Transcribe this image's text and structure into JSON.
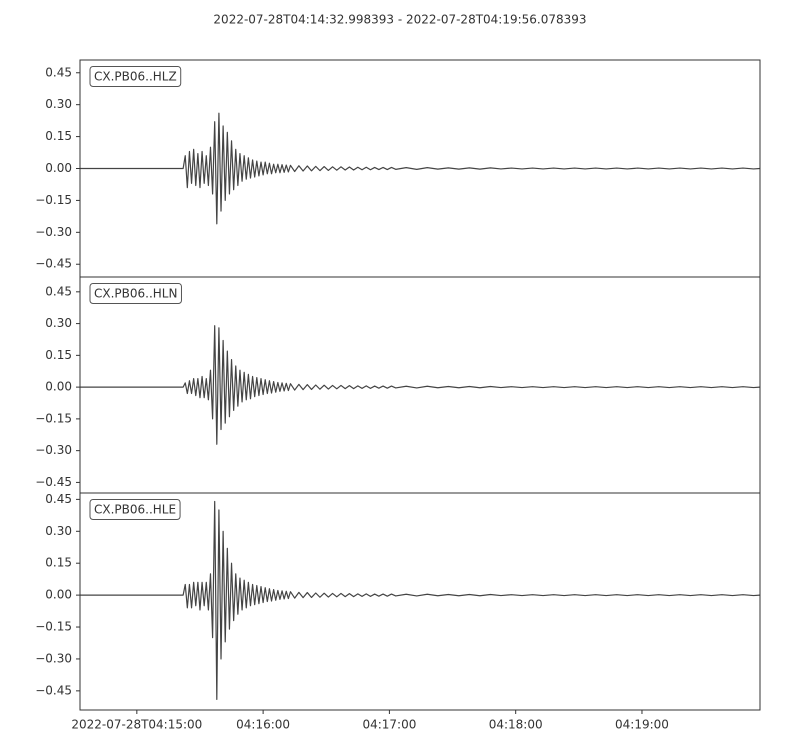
{
  "title": "2022-07-28T04:14:32.998393  -  2022-07-28T04:19:56.078393",
  "chart_data": [
    {
      "type": "line",
      "label": "CX.PB06..HLZ",
      "color": "#444444",
      "xlim": [
        0,
        323.08
      ],
      "ylim": [
        -0.51,
        0.51
      ],
      "yticks": [
        0.45,
        {
          "value": 0.3,
          "label": "0.30"
        },
        {
          "value": 0.15,
          "label": "0.15"
        },
        {
          "value": 0,
          "label": "0.00"
        },
        {
          "value": -0.15,
          "label": "−0.15"
        },
        {
          "value": -0.3,
          "label": "−0.30"
        },
        {
          "value": -0.45,
          "label": "−0.45"
        }
      ],
      "x": [
        0,
        49,
        50,
        51,
        52,
        53,
        54,
        55,
        56,
        57,
        58,
        59,
        60,
        61,
        62,
        63,
        64,
        65,
        66,
        67,
        68,
        69,
        70,
        71,
        72,
        73,
        74,
        75,
        76,
        77,
        78,
        79,
        80,
        81,
        82,
        83,
        84,
        85,
        86,
        87,
        88,
        89,
        90,
        91,
        92,
        93,
        94,
        95,
        96,
        97,
        98,
        99,
        100,
        102,
        104,
        106,
        108,
        110,
        112,
        114,
        116,
        118,
        120,
        122,
        124,
        126,
        128,
        130,
        132,
        134,
        136,
        138,
        140,
        142,
        144,
        146,
        148,
        150,
        155,
        160,
        165,
        170,
        175,
        180,
        185,
        190,
        195,
        200,
        205,
        210,
        215,
        220,
        225,
        230,
        235,
        240,
        245,
        250,
        255,
        260,
        265,
        270,
        275,
        280,
        285,
        290,
        295,
        300,
        305,
        310,
        315,
        320,
        323
      ],
      "values": [
        0,
        0,
        0.06,
        -0.09,
        0.08,
        -0.07,
        0.09,
        -0.08,
        0.07,
        -0.09,
        0.08,
        -0.07,
        0.06,
        -0.08,
        0.1,
        -0.12,
        0.22,
        -0.26,
        0.26,
        -0.2,
        0.2,
        -0.15,
        0.17,
        -0.12,
        0.13,
        -0.1,
        0.09,
        -0.08,
        0.07,
        -0.06,
        0.06,
        -0.05,
        0.05,
        -0.045,
        0.04,
        -0.04,
        0.035,
        -0.035,
        0.03,
        -0.03,
        0.03,
        -0.025,
        0.025,
        -0.025,
        0.02,
        -0.02,
        0.02,
        -0.02,
        0.018,
        -0.018,
        0.016,
        -0.016,
        0.015,
        -0.014,
        0.013,
        -0.012,
        0.012,
        -0.011,
        0.01,
        -0.01,
        0.009,
        -0.009,
        0.008,
        -0.008,
        0.008,
        -0.007,
        0.007,
        -0.007,
        0.006,
        -0.006,
        0.006,
        -0.006,
        0.005,
        -0.005,
        0.005,
        -0.005,
        0.005,
        -0.004,
        0.004,
        -0.004,
        0.004,
        -0.003,
        0.003,
        -0.003,
        0.003,
        -0.003,
        0.003,
        -0.002,
        0.002,
        -0.002,
        0.002,
        -0.002,
        0.002,
        -0.002,
        0.002,
        -0.002,
        0.002,
        -0.002,
        0.002,
        -0.002,
        0.002,
        -0.002,
        0.002,
        -0.002,
        0.002,
        -0.002,
        0.002,
        -0.002,
        0.002,
        -0.002,
        0.002,
        -0.002,
        0
      ]
    },
    {
      "type": "line",
      "label": "CX.PB06..HLN",
      "color": "#444444",
      "xlim": [
        0,
        323.08
      ],
      "ylim": [
        -0.5,
        0.52
      ],
      "yticks": [
        0.45,
        {
          "value": 0.3,
          "label": "0.30"
        },
        {
          "value": 0.15,
          "label": "0.15"
        },
        {
          "value": 0,
          "label": "0.00"
        },
        {
          "value": -0.15,
          "label": "−0.15"
        },
        {
          "value": -0.3,
          "label": "−0.30"
        },
        {
          "value": -0.45,
          "label": "−0.45"
        }
      ],
      "x": [
        0,
        49,
        50,
        51,
        52,
        53,
        54,
        55,
        56,
        57,
        58,
        59,
        60,
        61,
        62,
        63,
        64,
        65,
        66,
        67,
        68,
        69,
        70,
        71,
        72,
        73,
        74,
        75,
        76,
        77,
        78,
        79,
        80,
        81,
        82,
        83,
        84,
        85,
        86,
        87,
        88,
        89,
        90,
        91,
        92,
        93,
        94,
        95,
        96,
        97,
        98,
        99,
        100,
        102,
        104,
        106,
        108,
        110,
        112,
        114,
        116,
        118,
        120,
        122,
        124,
        126,
        128,
        130,
        132,
        134,
        136,
        138,
        140,
        142,
        144,
        146,
        148,
        150,
        155,
        160,
        165,
        170,
        175,
        180,
        185,
        190,
        195,
        200,
        205,
        210,
        215,
        220,
        225,
        230,
        235,
        240,
        245,
        250,
        255,
        260,
        265,
        270,
        275,
        280,
        285,
        290,
        295,
        300,
        305,
        310,
        315,
        320,
        323
      ],
      "values": [
        0,
        0,
        0.02,
        -0.03,
        0.03,
        -0.03,
        0.04,
        -0.04,
        0.04,
        -0.05,
        0.05,
        -0.05,
        0.04,
        -0.06,
        0.08,
        -0.15,
        0.29,
        -0.27,
        0.28,
        -0.2,
        0.22,
        -0.17,
        0.17,
        -0.14,
        0.13,
        -0.11,
        0.1,
        -0.09,
        0.08,
        -0.07,
        0.07,
        -0.06,
        0.06,
        -0.055,
        0.05,
        -0.045,
        0.045,
        -0.04,
        0.04,
        -0.035,
        0.035,
        -0.03,
        0.03,
        -0.028,
        0.026,
        -0.024,
        0.022,
        -0.02,
        0.02,
        -0.018,
        0.018,
        -0.016,
        0.016,
        -0.014,
        0.013,
        -0.012,
        0.012,
        -0.011,
        0.01,
        -0.01,
        0.009,
        -0.009,
        0.008,
        -0.008,
        0.008,
        -0.007,
        0.007,
        -0.007,
        0.006,
        -0.006,
        0.006,
        -0.006,
        0.005,
        -0.005,
        0.005,
        -0.005,
        0.005,
        -0.004,
        0.004,
        -0.004,
        0.004,
        -0.003,
        0.003,
        -0.003,
        0.003,
        -0.003,
        0.003,
        -0.002,
        0.002,
        -0.002,
        0.002,
        -0.002,
        0.002,
        -0.002,
        0.002,
        -0.002,
        0.002,
        -0.002,
        0.002,
        -0.002,
        0.002,
        -0.002,
        0.002,
        -0.002,
        0.002,
        -0.002,
        0.002,
        -0.002,
        0.002,
        -0.002,
        0.002,
        -0.002,
        0
      ]
    },
    {
      "type": "line",
      "label": "CX.PB06..HLE",
      "color": "#444444",
      "xlim": [
        0,
        323.08
      ],
      "ylim": [
        -0.54,
        0.48
      ],
      "yticks": [
        0.45,
        {
          "value": 0.3,
          "label": "0.30"
        },
        {
          "value": 0.15,
          "label": "0.15"
        },
        {
          "value": 0,
          "label": "0.00"
        },
        {
          "value": -0.15,
          "label": "−0.15"
        },
        {
          "value": -0.3,
          "label": "−0.30"
        },
        {
          "value": -0.45,
          "label": "−0.45"
        }
      ],
      "xticks": [
        {
          "value": 27.0016,
          "label": "2022-07-28T04:15:00"
        },
        {
          "value": 87.0016,
          "label": "04:16:00"
        },
        {
          "value": 147.0016,
          "label": "04:17:00"
        },
        {
          "value": 207.0016,
          "label": "04:18:00"
        },
        {
          "value": 267.0016,
          "label": "04:19:00"
        }
      ],
      "x": [
        0,
        49,
        50,
        51,
        52,
        53,
        54,
        55,
        56,
        57,
        58,
        59,
        60,
        61,
        62,
        63,
        64,
        65,
        66,
        67,
        68,
        69,
        70,
        71,
        72,
        73,
        74,
        75,
        76,
        77,
        78,
        79,
        80,
        81,
        82,
        83,
        84,
        85,
        86,
        87,
        88,
        89,
        90,
        91,
        92,
        93,
        94,
        95,
        96,
        97,
        98,
        99,
        100,
        102,
        104,
        106,
        108,
        110,
        112,
        114,
        116,
        118,
        120,
        122,
        124,
        126,
        128,
        130,
        132,
        134,
        136,
        138,
        140,
        142,
        144,
        146,
        148,
        150,
        155,
        160,
        165,
        170,
        175,
        180,
        185,
        190,
        195,
        200,
        205,
        210,
        215,
        220,
        225,
        230,
        235,
        240,
        245,
        250,
        255,
        260,
        265,
        270,
        275,
        280,
        285,
        290,
        295,
        300,
        305,
        310,
        315,
        320,
        323
      ],
      "values": [
        0,
        0,
        0.05,
        -0.06,
        0.05,
        -0.06,
        0.06,
        -0.05,
        0.06,
        -0.07,
        0.06,
        -0.05,
        0.06,
        -0.07,
        0.1,
        -0.2,
        0.44,
        -0.49,
        0.4,
        -0.3,
        0.3,
        -0.22,
        0.22,
        -0.16,
        0.15,
        -0.12,
        0.1,
        -0.09,
        0.08,
        -0.07,
        0.07,
        -0.06,
        0.06,
        -0.05,
        0.05,
        -0.045,
        0.045,
        -0.04,
        0.04,
        -0.035,
        0.035,
        -0.03,
        0.03,
        -0.028,
        0.026,
        -0.024,
        0.022,
        -0.02,
        0.02,
        -0.018,
        0.018,
        -0.016,
        0.016,
        -0.014,
        0.013,
        -0.012,
        0.012,
        -0.011,
        0.01,
        -0.01,
        0.009,
        -0.009,
        0.008,
        -0.008,
        0.008,
        -0.007,
        0.007,
        -0.007,
        0.006,
        -0.006,
        0.006,
        -0.006,
        0.005,
        -0.005,
        0.005,
        -0.005,
        0.005,
        -0.004,
        0.004,
        -0.004,
        0.004,
        -0.003,
        0.003,
        -0.003,
        0.003,
        -0.003,
        0.003,
        -0.002,
        0.002,
        -0.002,
        0.002,
        -0.002,
        0.002,
        -0.002,
        0.002,
        -0.002,
        0.002,
        -0.002,
        0.002,
        -0.002,
        0.002,
        -0.002,
        0.002,
        -0.002,
        0.002,
        -0.002,
        0.002,
        -0.002,
        0.002,
        -0.002,
        0.002,
        -0.002,
        0
      ]
    }
  ]
}
